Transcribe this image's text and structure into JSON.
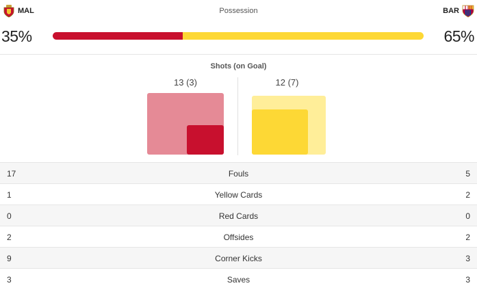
{
  "home": {
    "abbr": "MAL",
    "possession": "35%",
    "possession_value": 35,
    "shots_label": "13 (3)",
    "shots": 13,
    "shots_on_goal": 3,
    "color": "#c8102e",
    "color_light": "#e58a96"
  },
  "away": {
    "abbr": "BAR",
    "possession": "65%",
    "possession_value": 65,
    "shots_label": "12 (7)",
    "shots": 12,
    "shots_on_goal": 7,
    "color": "#fdd835",
    "color_light": "#ffee99"
  },
  "possession_title": "Possession",
  "shots_title": "Shots (on Goal)",
  "stats": [
    {
      "name": "Fouls",
      "home": "17",
      "away": "5"
    },
    {
      "name": "Yellow Cards",
      "home": "1",
      "away": "2"
    },
    {
      "name": "Red Cards",
      "home": "0",
      "away": "0"
    },
    {
      "name": "Offsides",
      "home": "2",
      "away": "2"
    },
    {
      "name": "Corner Kicks",
      "home": "9",
      "away": "3"
    },
    {
      "name": "Saves",
      "home": "3",
      "away": "3"
    }
  ]
}
